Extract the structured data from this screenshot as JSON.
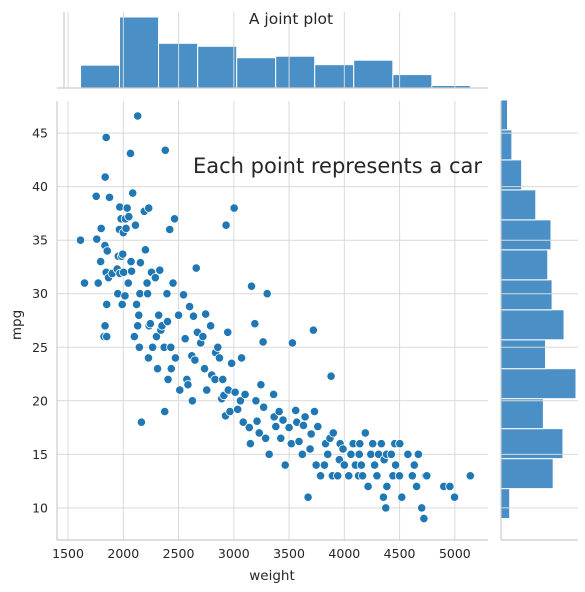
{
  "chart_data": {
    "type": "scatter",
    "title": "A joint plot",
    "annotation": "Each point represents a car",
    "xlabel": "weight",
    "ylabel": "mpg",
    "xlim": [
      1400,
      5300
    ],
    "ylim": [
      7,
      48
    ],
    "x_ticks": [
      1500,
      2000,
      2500,
      3000,
      3500,
      4000,
      4500,
      5000
    ],
    "y_ticks": [
      10,
      15,
      20,
      25,
      30,
      35,
      40,
      45
    ],
    "grid": true,
    "colors": {
      "points": "#1f77b4",
      "bars": "#4a90c6",
      "grid": "#d9d9d9",
      "axis": "#cccccc"
    },
    "points": [
      [
        1613,
        35
      ],
      [
        1649,
        31
      ],
      [
        1755,
        39.1
      ],
      [
        1760,
        35.1
      ],
      [
        1773,
        31
      ],
      [
        1795,
        33
      ],
      [
        1800,
        36.1
      ],
      [
        1825,
        26
      ],
      [
        1834,
        34.5
      ],
      [
        1835,
        27
      ],
      [
        1845,
        44.6
      ],
      [
        1850,
        26
      ],
      [
        1836,
        40.9
      ],
      [
        1845,
        32
      ],
      [
        1850,
        29
      ],
      [
        1855,
        34
      ],
      [
        1866,
        31.5
      ],
      [
        1875,
        39
      ],
      [
        1900,
        31.9
      ],
      [
        1945,
        32.3
      ],
      [
        1950,
        30
      ],
      [
        1955,
        33.5
      ],
      [
        1965,
        36
      ],
      [
        1968,
        38.1
      ],
      [
        1970,
        31.9
      ],
      [
        1980,
        37
      ],
      [
        1985,
        33.5
      ],
      [
        1990,
        29
      ],
      [
        1995,
        33.7
      ],
      [
        2000,
        35.7
      ],
      [
        2003,
        32
      ],
      [
        2015,
        29.8
      ],
      [
        2019,
        37
      ],
      [
        2025,
        36.1
      ],
      [
        2035,
        38
      ],
      [
        2045,
        31
      ],
      [
        2050,
        37.2
      ],
      [
        2065,
        43.1
      ],
      [
        2070,
        33
      ],
      [
        2075,
        32.1
      ],
      [
        2085,
        39.4
      ],
      [
        2100,
        26
      ],
      [
        2110,
        36.4
      ],
      [
        2120,
        29
      ],
      [
        2130,
        46.6
      ],
      [
        2130,
        27
      ],
      [
        2140,
        28
      ],
      [
        2145,
        25
      ],
      [
        2150,
        30
      ],
      [
        2155,
        32.9
      ],
      [
        2164,
        18
      ],
      [
        2190,
        37.7
      ],
      [
        2200,
        34.1
      ],
      [
        2215,
        31
      ],
      [
        2220,
        30
      ],
      [
        2228,
        24
      ],
      [
        2230,
        38
      ],
      [
        2234,
        27
      ],
      [
        2245,
        27.2
      ],
      [
        2255,
        32
      ],
      [
        2265,
        25
      ],
      [
        2290,
        31.5
      ],
      [
        2300,
        26
      ],
      [
        2310,
        23
      ],
      [
        2320,
        28
      ],
      [
        2330,
        32.2
      ],
      [
        2340,
        26.6
      ],
      [
        2350,
        27
      ],
      [
        2370,
        25
      ],
      [
        2380,
        43.4
      ],
      [
        2375,
        19
      ],
      [
        2395,
        30
      ],
      [
        2400,
        27.4
      ],
      [
        2405,
        22
      ],
      [
        2420,
        36
      ],
      [
        2430,
        25
      ],
      [
        2434,
        23
      ],
      [
        2450,
        31
      ],
      [
        2464,
        37
      ],
      [
        2472,
        24
      ],
      [
        2500,
        28
      ],
      [
        2511,
        21
      ],
      [
        2545,
        29.9
      ],
      [
        2560,
        25.8
      ],
      [
        2575,
        22
      ],
      [
        2585,
        21.5
      ],
      [
        2600,
        28.8
      ],
      [
        2620,
        24.2
      ],
      [
        2625,
        20
      ],
      [
        2635,
        27.9
      ],
      [
        2648,
        23.8
      ],
      [
        2660,
        32.4
      ],
      [
        2670,
        26.4
      ],
      [
        2700,
        25.4
      ],
      [
        2720,
        26
      ],
      [
        2735,
        23
      ],
      [
        2745,
        28.1
      ],
      [
        2755,
        21
      ],
      [
        2790,
        27
      ],
      [
        2800,
        22.4
      ],
      [
        2830,
        22
      ],
      [
        2835,
        24.5
      ],
      [
        2855,
        25
      ],
      [
        2870,
        24
      ],
      [
        2890,
        20.2
      ],
      [
        2900,
        22
      ],
      [
        2910,
        20.5
      ],
      [
        2925,
        18.6
      ],
      [
        2930,
        36.4
      ],
      [
        2945,
        26.4
      ],
      [
        2950,
        21
      ],
      [
        2965,
        19
      ],
      [
        2980,
        23.5
      ],
      [
        3003,
        38
      ],
      [
        3012,
        20.8
      ],
      [
        3035,
        19.2
      ],
      [
        3060,
        20
      ],
      [
        3070,
        24
      ],
      [
        3085,
        18
      ],
      [
        3102,
        20.6
      ],
      [
        3140,
        17.5
      ],
      [
        3150,
        16
      ],
      [
        3160,
        30.7
      ],
      [
        3190,
        27.2
      ],
      [
        3200,
        20
      ],
      [
        3210,
        18.1
      ],
      [
        3230,
        17
      ],
      [
        3245,
        21.5
      ],
      [
        3265,
        25.5
      ],
      [
        3270,
        19.4
      ],
      [
        3288,
        16.5
      ],
      [
        3302,
        30
      ],
      [
        3320,
        15
      ],
      [
        3360,
        20.6
      ],
      [
        3365,
        18.5
      ],
      [
        3380,
        17.6
      ],
      [
        3410,
        19
      ],
      [
        3425,
        16.5
      ],
      [
        3445,
        18.2
      ],
      [
        3465,
        14
      ],
      [
        3500,
        17.5
      ],
      [
        3520,
        16
      ],
      [
        3530,
        25.4
      ],
      [
        3560,
        19.1
      ],
      [
        3570,
        18
      ],
      [
        3590,
        16.2
      ],
      [
        3620,
        15
      ],
      [
        3630,
        17.7
      ],
      [
        3645,
        18.5
      ],
      [
        3672,
        11
      ],
      [
        3690,
        15.5
      ],
      [
        3700,
        16.9
      ],
      [
        3720,
        26.6
      ],
      [
        3730,
        19
      ],
      [
        3745,
        14
      ],
      [
        3760,
        17.6
      ],
      [
        3785,
        13
      ],
      [
        3820,
        14
      ],
      [
        3830,
        16
      ],
      [
        3850,
        15
      ],
      [
        3870,
        16.5
      ],
      [
        3880,
        22.3
      ],
      [
        3892,
        13
      ],
      [
        3900,
        17
      ],
      [
        3940,
        13
      ],
      [
        3955,
        14.5
      ],
      [
        3962,
        16
      ],
      [
        3988,
        15.5
      ],
      [
        4000,
        14
      ],
      [
        4040,
        13
      ],
      [
        4060,
        15
      ],
      [
        4080,
        16
      ],
      [
        4100,
        14
      ],
      [
        4129,
        13
      ],
      [
        4135,
        15
      ],
      [
        4140,
        16
      ],
      [
        4154,
        14
      ],
      [
        4165,
        13
      ],
      [
        4190,
        17
      ],
      [
        4215,
        12
      ],
      [
        4240,
        15
      ],
      [
        4257,
        16
      ],
      [
        4274,
        14
      ],
      [
        4295,
        13
      ],
      [
        4310,
        15
      ],
      [
        4335,
        16
      ],
      [
        4354,
        11
      ],
      [
        4360,
        14.5
      ],
      [
        4375,
        10
      ],
      [
        4382,
        15
      ],
      [
        4385,
        12
      ],
      [
        4425,
        15
      ],
      [
        4440,
        13
      ],
      [
        4456,
        16
      ],
      [
        4464,
        14
      ],
      [
        4499,
        13
      ],
      [
        4502,
        16
      ],
      [
        4520,
        11
      ],
      [
        4575,
        15
      ],
      [
        4615,
        13
      ],
      [
        4633,
        14
      ],
      [
        4654,
        12
      ],
      [
        4670,
        15
      ],
      [
        4700,
        10
      ],
      [
        4720,
        9
      ],
      [
        4735,
        13
      ],
      [
        4746,
        13
      ],
      [
        4900,
        12
      ],
      [
        4955,
        12
      ],
      [
        4997,
        11
      ],
      [
        5140,
        13
      ]
    ],
    "top_histogram": {
      "bin_edges": [
        1613,
        1966,
        2319,
        2673,
        3026,
        3379,
        3732,
        4085,
        4439,
        4792,
        5140
      ],
      "counts": [
        46,
        143,
        90,
        84,
        61,
        64,
        47,
        56,
        27,
        5
      ]
    },
    "right_histogram": {
      "bin_edges": [
        9,
        11.8,
        14.6,
        17.4,
        20.2,
        23,
        25.7,
        28.5,
        31.3,
        34.1,
        36.9,
        39.7,
        42.5,
        45.3,
        48.1
      ],
      "counts": [
        8,
        48,
        57,
        39,
        69,
        41,
        58,
        47,
        43,
        46,
        32,
        19,
        10,
        6
      ],
      "axis_range": [
        7,
        48
      ]
    }
  }
}
